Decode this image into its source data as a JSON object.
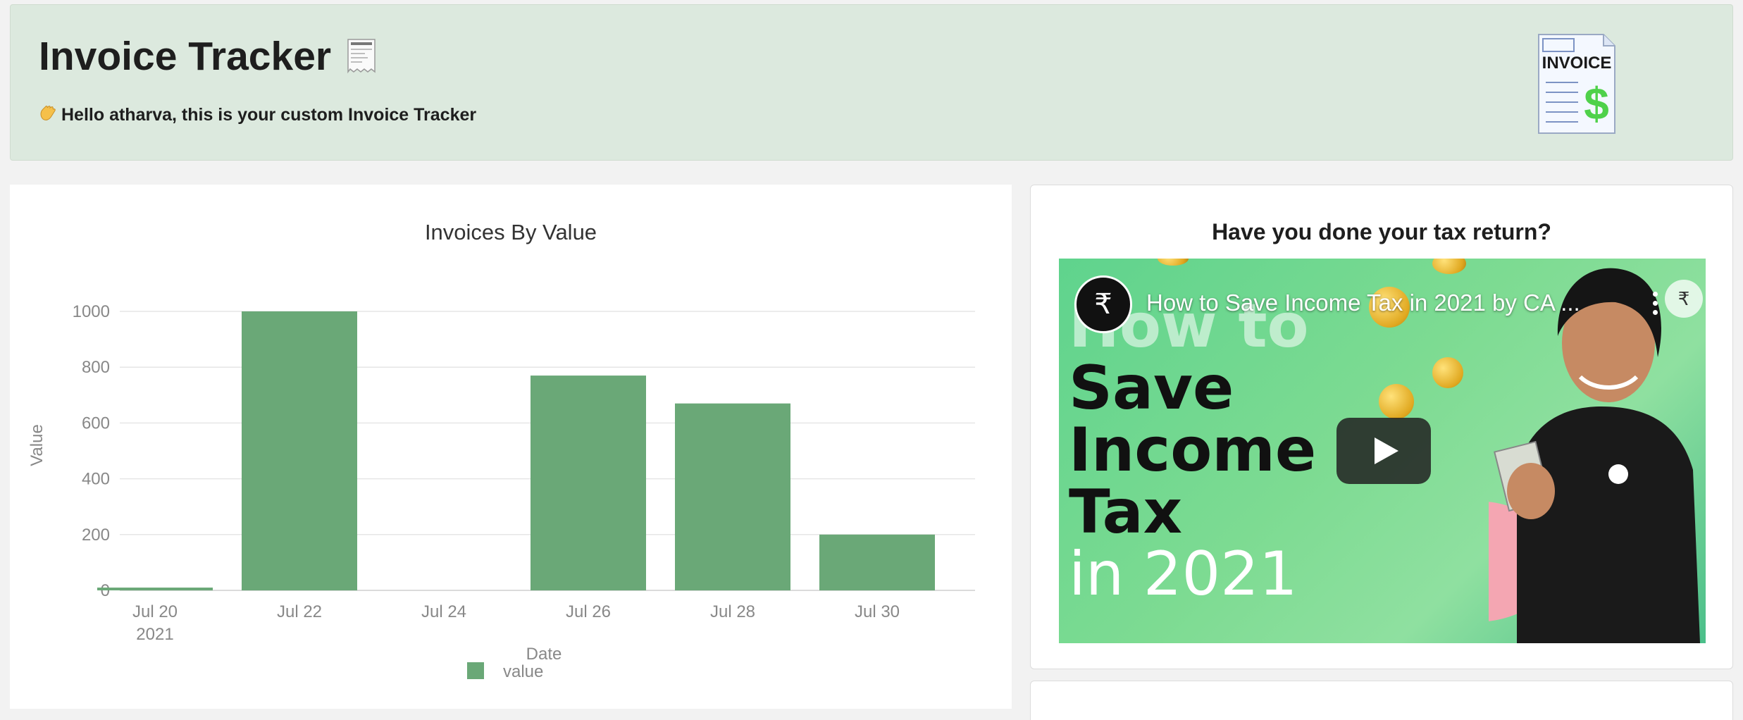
{
  "header": {
    "title": "Invoice Tracker",
    "title_icon": "receipt-icon",
    "greeting_icon": "waving-hand-icon",
    "greeting": "Hello atharva, this is your custom Invoice Tracker",
    "logo_text": "INVOICE",
    "logo_symbol": "$",
    "background_color": "#dce9de"
  },
  "chart_data": {
    "type": "bar",
    "title": "Invoices By Value",
    "xlabel": "Date",
    "ylabel": "Value",
    "categories": [
      "2021-07-20",
      "2021-07-22",
      "2021-07-26",
      "2021-07-28",
      "2021-07-30"
    ],
    "values": [
      10,
      1000,
      770,
      670,
      200
    ],
    "ylim": [
      0,
      1000
    ],
    "yticks": [
      0,
      200,
      400,
      600,
      800,
      1000
    ],
    "xtick_labels": [
      "Jul 20",
      "Jul 22",
      "Jul 24",
      "Jul 26",
      "Jul 28",
      "Jul 30"
    ],
    "xtick_sublabel": "2021",
    "series": [
      {
        "name": "value",
        "color": "#6aa877"
      }
    ],
    "legend": "bottom-center",
    "grid": true
  },
  "video_card": {
    "heading": "Have you done your tax return?",
    "video_title": "How to Save Income Tax in 2021 by CA ...",
    "thumbnail_lines": [
      "How to",
      "Save",
      "Income",
      "Tax",
      "in 2021"
    ],
    "channel_icon": "rupee-sun-logo-icon",
    "play_icon": "play-icon",
    "menu_icon": "more-vertical-icon"
  }
}
